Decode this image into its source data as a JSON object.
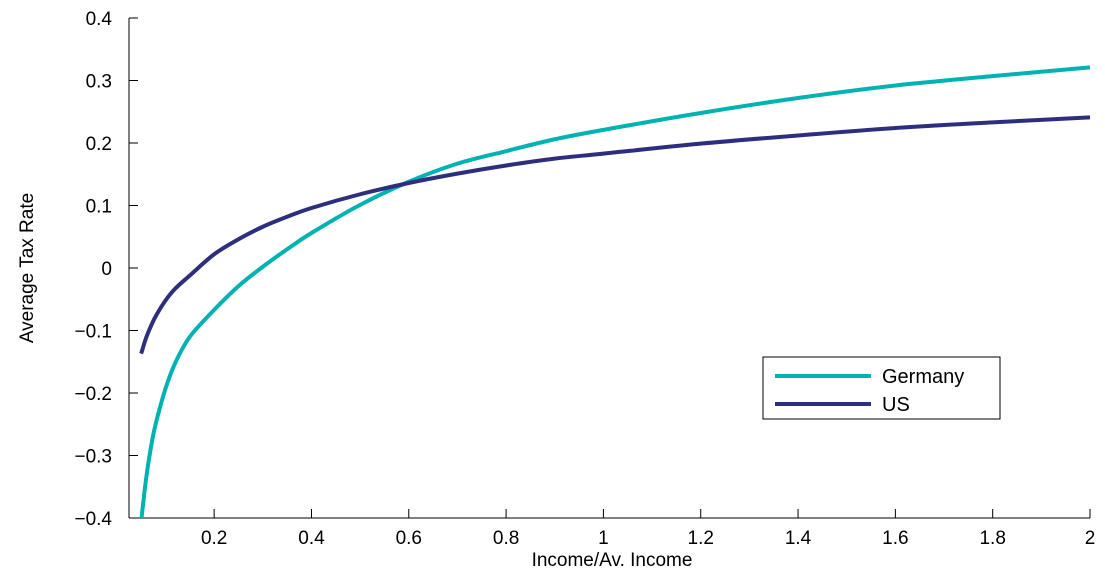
{
  "chart_data": {
    "type": "line",
    "title": "",
    "xlabel": "Income/Av. Income",
    "ylabel": "Average Tax Rate",
    "xlim": [
      0.025,
      2.0
    ],
    "ylim": [
      -0.4,
      0.4
    ],
    "x_ticks": [
      0.2,
      0.4,
      0.6,
      0.8,
      1.0,
      1.2,
      1.4,
      1.6,
      1.8,
      2.0
    ],
    "x_tick_labels": [
      "0.2",
      "0.4",
      "0.6",
      "0.8",
      "1",
      "1.2",
      "1.4",
      "1.6",
      "1.8",
      "2"
    ],
    "y_ticks": [
      -0.4,
      -0.3,
      -0.2,
      -0.1,
      0.0,
      0.1,
      0.2,
      0.3,
      0.4
    ],
    "y_tick_labels": [
      "−0.4",
      "−0.3",
      "−0.2",
      "−0.1",
      "0",
      "0.1",
      "0.2",
      "0.3",
      "0.4"
    ],
    "grid": false,
    "legend_position": "lower-right",
    "series": [
      {
        "name": "Germany",
        "color": "#00b2b2",
        "x": [
          0.05,
          0.06,
          0.07,
          0.08,
          0.1,
          0.12,
          0.15,
          0.2,
          0.25,
          0.3,
          0.35,
          0.4,
          0.5,
          0.6,
          0.7,
          0.8,
          0.9,
          1.0,
          1.2,
          1.4,
          1.6,
          1.8,
          2.0
        ],
        "y": [
          -0.405,
          -0.338,
          -0.287,
          -0.249,
          -0.193,
          -0.152,
          -0.11,
          -0.067,
          -0.029,
          0.002,
          0.03,
          0.056,
          0.101,
          0.138,
          0.167,
          0.187,
          0.206,
          0.221,
          0.248,
          0.272,
          0.292,
          0.307,
          0.321
        ]
      },
      {
        "name": "US",
        "color": "#2e2e7e",
        "x": [
          0.05,
          0.06,
          0.07,
          0.08,
          0.1,
          0.12,
          0.15,
          0.2,
          0.25,
          0.3,
          0.35,
          0.4,
          0.5,
          0.6,
          0.7,
          0.8,
          0.9,
          1.0,
          1.2,
          1.4,
          1.6,
          1.8,
          2.0
        ],
        "y": [
          -0.137,
          -0.112,
          -0.093,
          -0.077,
          -0.052,
          -0.033,
          -0.012,
          0.022,
          0.046,
          0.066,
          0.082,
          0.096,
          0.118,
          0.136,
          0.151,
          0.164,
          0.175,
          0.183,
          0.199,
          0.212,
          0.224,
          0.233,
          0.241
        ]
      }
    ]
  }
}
